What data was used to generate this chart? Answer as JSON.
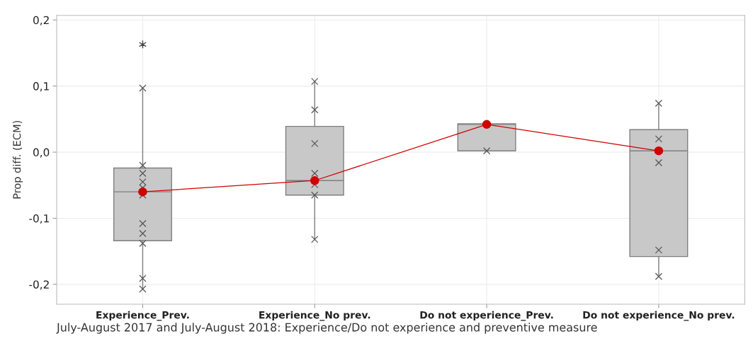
{
  "chart_data": {
    "type": "box",
    "xlabel": "July-August 2017 and July-August 2018: Experience/Do not experience and preventive measure",
    "ylabel": "Prop diff. (ECM)",
    "categories": [
      "Experience_Prev.",
      "Experience_No prev.",
      "Do not experience_Prev.",
      "Do not experience_No prev."
    ],
    "boxes": [
      {
        "low": -0.207,
        "q1": -0.134,
        "median": -0.06,
        "q3": -0.024,
        "high": 0.097,
        "outliers": [
          0.163
        ]
      },
      {
        "low": -0.132,
        "q1": -0.065,
        "median": -0.043,
        "q3": 0.039,
        "high": 0.107
      },
      {
        "low": 0.002,
        "q1": 0.002,
        "median": 0.042,
        "q3": 0.043,
        "high": 0.043
      },
      {
        "low": -0.188,
        "q1": -0.158,
        "median": 0.002,
        "q3": 0.034,
        "high": 0.074
      }
    ],
    "series": [
      {
        "type": "scatter",
        "color": "#555555",
        "marker": "cross",
        "x": [
          "Experience_Prev.",
          "Experience_Prev.",
          "Experience_Prev.",
          "Experience_Prev.",
          "Experience_Prev.",
          "Experience_Prev.",
          "Experience_Prev.",
          "Experience_Prev.",
          "Experience_Prev.",
          "Experience_Prev.",
          "Experience_Prev.",
          "Experience_No prev.",
          "Experience_No prev.",
          "Experience_No prev.",
          "Experience_No prev.",
          "Experience_No prev.",
          "Experience_No prev.",
          "Experience_No prev.",
          "Do not experience_Prev.",
          "Do not experience_No prev.",
          "Do not experience_No prev.",
          "Do not experience_No prev.",
          "Do not experience_No prev.",
          "Do not experience_No prev."
        ],
        "values": [
          0.097,
          -0.02,
          -0.032,
          -0.045,
          -0.054,
          -0.065,
          -0.108,
          -0.123,
          -0.138,
          -0.191,
          -0.207,
          0.107,
          0.064,
          0.013,
          -0.032,
          -0.049,
          -0.065,
          -0.132,
          0.002,
          0.074,
          0.02,
          -0.016,
          -0.148,
          -0.188
        ]
      },
      {
        "type": "line",
        "color": "#d00000",
        "marker": "circle",
        "values": [
          -0.06,
          -0.043,
          0.042,
          0.002
        ]
      }
    ],
    "ylim": [
      -0.23,
      0.207
    ],
    "yticks": [
      {
        "value": -0.2,
        "label": "-0,2"
      },
      {
        "value": -0.1,
        "label": "-0,1"
      },
      {
        "value": 0.0,
        "label": "0,0"
      },
      {
        "value": 0.1,
        "label": "0,1"
      },
      {
        "value": 0.2,
        "label": "0,2"
      }
    ],
    "grid": true
  }
}
